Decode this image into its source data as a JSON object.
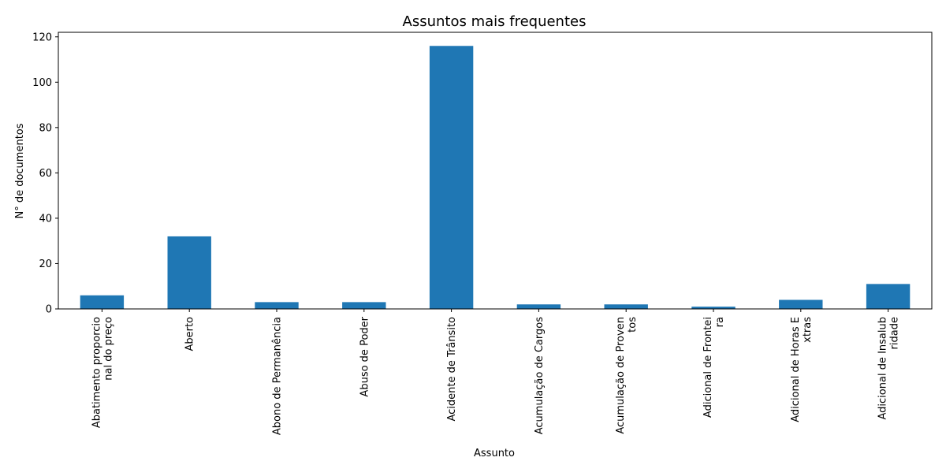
{
  "chart_data": {
    "type": "bar",
    "title": "Assuntos mais frequentes",
    "xlabel": "Assunto",
    "ylabel": "N° de documentos",
    "categories": [
      "Abatimento proporcio\nnal do preço",
      "Aberto",
      "Abono de Permanência",
      "Abuso de Poder",
      "Acidente de Trânsito",
      "Acumulação de Cargos",
      "Acumulação de Proven\ntos",
      "Adicional de Frontei\nra",
      "Adicional de Horas E\nxtras",
      "Adicional de Insalub\nridade"
    ],
    "values": [
      6,
      32,
      3,
      3,
      116,
      2,
      2,
      1,
      4,
      11
    ],
    "ylim": [
      0,
      122
    ],
    "yticks": [
      0,
      20,
      40,
      60,
      80,
      100,
      120
    ],
    "bar_color": "#1f77b4",
    "grid": false,
    "legend": "none"
  }
}
